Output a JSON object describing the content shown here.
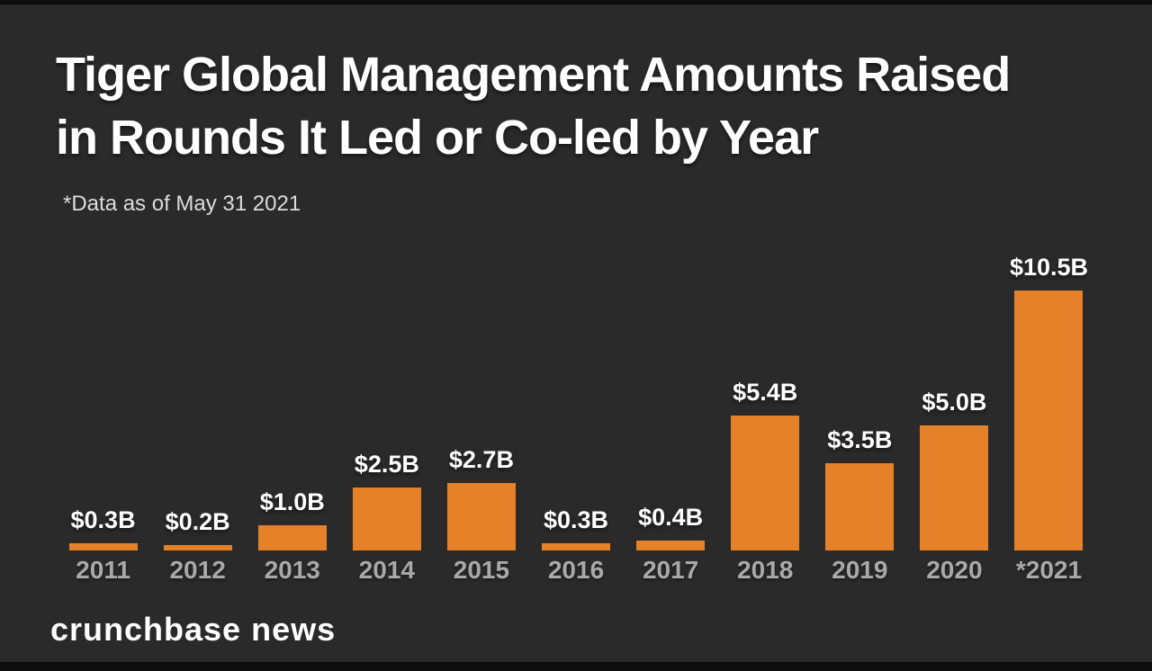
{
  "page": {
    "background_color": "#2b2a2a",
    "edge_strip_color": "#0d0d0d"
  },
  "header": {
    "title_line1": "Tiger Global Management Amounts Raised",
    "title_line2": "in Rounds It Led or Co-led by Year",
    "subtitle": "*Data as of May 31 2021"
  },
  "footer": {
    "brand": "crunchbase news"
  },
  "chart_data": {
    "type": "bar",
    "title": "Tiger Global Management Amounts Raised in Rounds It Led or Co-led by Year",
    "subtitle": "*Data as of May 31 2021",
    "categories": [
      "2011",
      "2012",
      "2013",
      "2014",
      "2015",
      "2016",
      "2017",
      "2018",
      "2019",
      "2020",
      "*2021"
    ],
    "values": [
      0.3,
      0.2,
      1.0,
      2.5,
      2.7,
      0.3,
      0.4,
      5.4,
      3.5,
      5.0,
      10.5
    ],
    "value_labels": [
      "$0.3B",
      "$0.2B",
      "$1.0B",
      "$2.5B",
      "$2.7B",
      "$0.3B",
      "$0.4B",
      "$5.4B",
      "$3.5B",
      "$5.0B",
      "$10.5B"
    ],
    "xlabel": "",
    "ylabel": "",
    "ylim": [
      0,
      10.5
    ],
    "grid": false,
    "legend": false,
    "bar_color": "#e58128",
    "value_label_color": "#ffffff",
    "category_label_color": "#a9a9a9"
  }
}
